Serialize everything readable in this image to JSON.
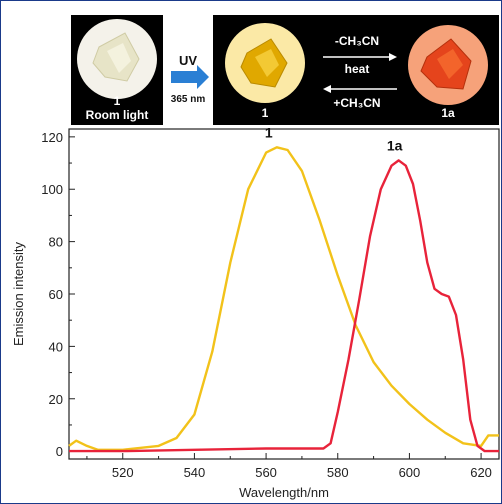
{
  "banner": {
    "photo_1_label": "1",
    "photo_1_caption": "Room light",
    "uv_label": "UV",
    "uv_wavelength": "365 nm",
    "photo_2_label": "1",
    "forward_top": "-CH₃CN",
    "forward_bottom": "heat",
    "reverse_label": "+CH₃CN",
    "photo_3_label": "1a"
  },
  "colors": {
    "series_1": "#f2c21a",
    "series_1a": "#e8233a",
    "arrow": "#2a7fd4",
    "banner_bg": "#000000"
  },
  "chart_data": {
    "type": "line",
    "xlabel": "Wavelength/nm",
    "ylabel": "Emission intensity",
    "xlim": [
      505,
      625
    ],
    "ylim": [
      -3,
      123
    ],
    "xticks": [
      520,
      540,
      560,
      580,
      600,
      620
    ],
    "yticks": [
      0,
      20,
      40,
      60,
      80,
      100,
      120
    ],
    "grid": false,
    "series": [
      {
        "name": "1",
        "color": "#f2c21a",
        "x": [
          505,
          507,
          510,
          513,
          520,
          530,
          535,
          540,
          545,
          550,
          555,
          560,
          563,
          566,
          570,
          575,
          580,
          585,
          590,
          595,
          600,
          605,
          610,
          615,
          620,
          622,
          625
        ],
        "y": [
          2,
          4,
          2,
          0.5,
          0.5,
          2,
          5,
          14,
          38,
          72,
          100,
          114,
          116,
          115,
          107,
          88,
          67,
          48,
          34,
          25,
          18,
          12,
          7,
          3,
          2,
          6,
          6
        ]
      },
      {
        "name": "1a",
        "color": "#e8233a",
        "x": [
          505,
          520,
          540,
          560,
          570,
          576,
          578,
          580,
          583,
          586,
          589,
          592,
          595,
          597,
          599,
          601,
          603,
          605,
          607,
          609,
          611,
          613,
          615,
          617,
          619,
          621,
          625
        ],
        "y": [
          0,
          0,
          0.5,
          1,
          1,
          1,
          3,
          15,
          35,
          58,
          82,
          100,
          109,
          111,
          109,
          102,
          88,
          72,
          62,
          60,
          59,
          52,
          35,
          12,
          2,
          0,
          0
        ]
      }
    ],
    "annotations": [
      "1",
      "1a"
    ]
  }
}
